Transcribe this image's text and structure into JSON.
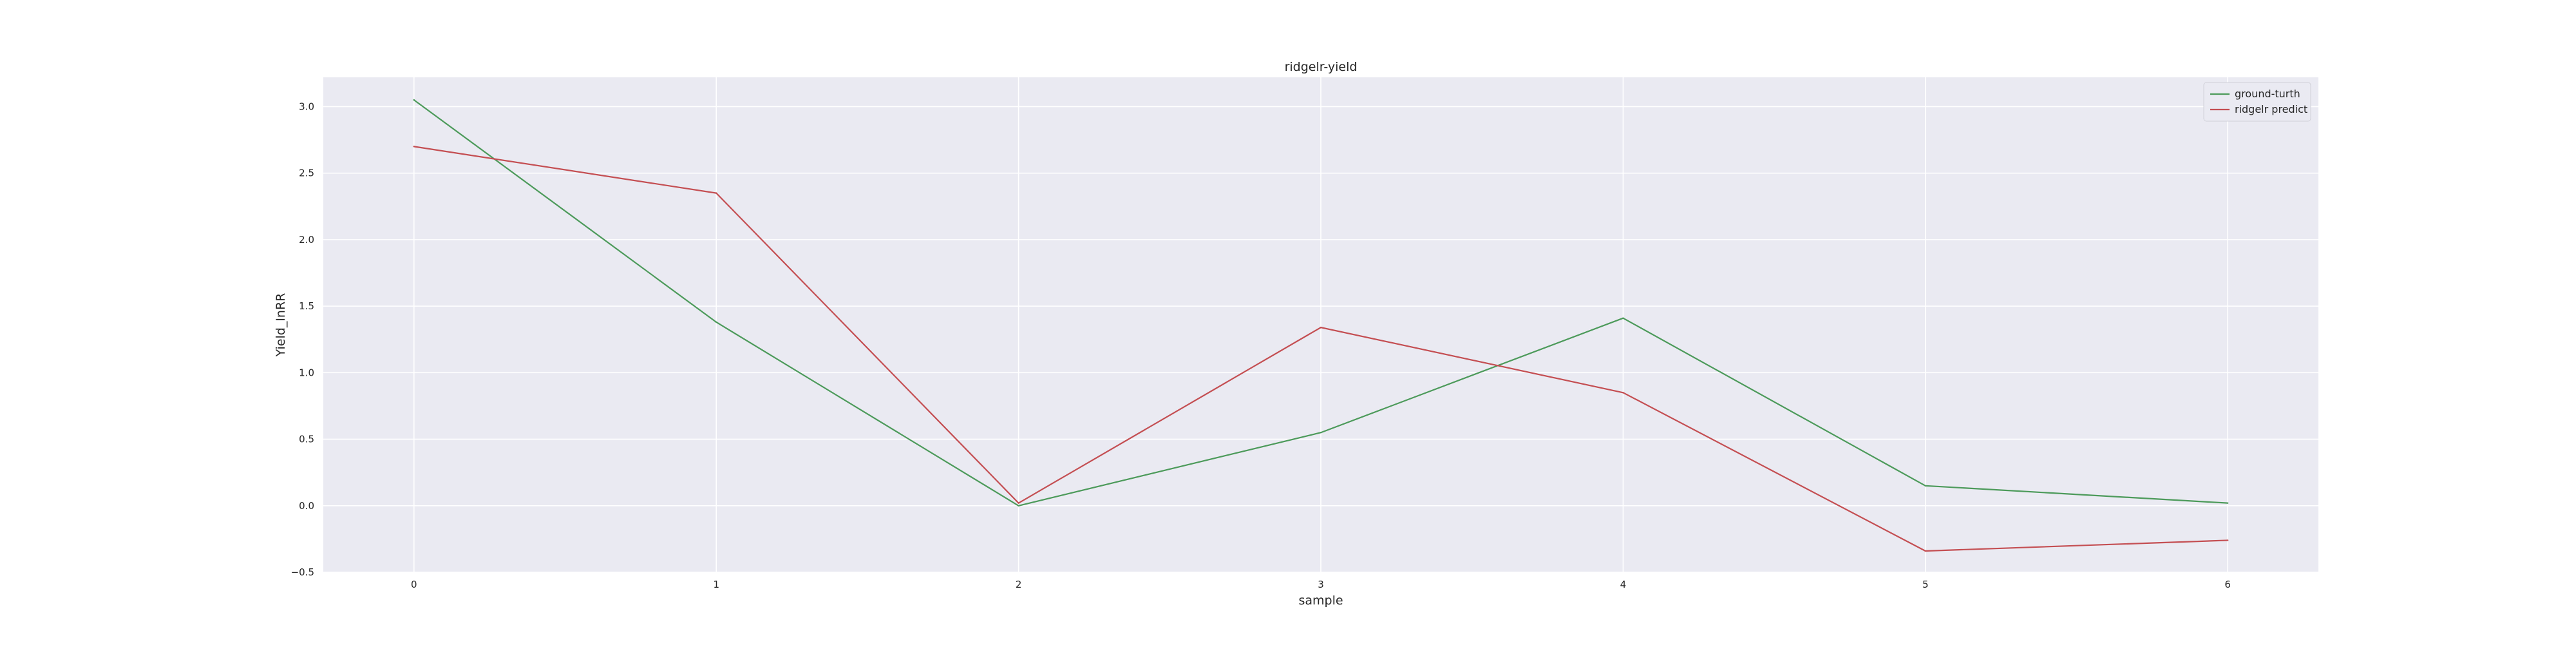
{
  "chart_data": {
    "type": "line",
    "title": "ridgelr-yield",
    "xlabel": "sample",
    "ylabel": "Yield_InRR",
    "x": [
      0,
      1,
      2,
      3,
      4,
      5,
      6
    ],
    "xticks": [
      "0",
      "1",
      "2",
      "3",
      "4",
      "5",
      "6"
    ],
    "xlim": [
      -0.3,
      6.3
    ],
    "yticks": [
      "−0.5",
      "0.0",
      "0.5",
      "1.0",
      "1.5",
      "2.0",
      "2.5",
      "3.0"
    ],
    "ytick_values": [
      -0.5,
      0.0,
      0.5,
      1.0,
      1.5,
      2.0,
      2.5,
      3.0
    ],
    "ylim": [
      -0.5,
      3.22
    ],
    "grid": true,
    "legend_position": "top-right",
    "series": [
      {
        "name": "ground-turth",
        "color": "#4c9a5a",
        "values": [
          3.05,
          1.38,
          0.0,
          0.55,
          1.41,
          0.15,
          0.02
        ]
      },
      {
        "name": "ridgelr predict",
        "color": "#c44e52",
        "values": [
          2.7,
          2.35,
          0.02,
          1.34,
          0.85,
          -0.34,
          -0.26
        ]
      }
    ],
    "colors": {
      "plot_background": "#eaeaf2",
      "grid": "#ffffff",
      "text": "#262626"
    }
  }
}
